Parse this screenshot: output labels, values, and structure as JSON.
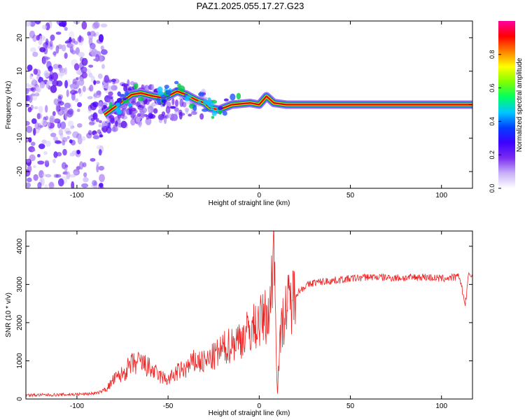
{
  "title": "PAZ1.2025.055.17.27.G23",
  "colors": {
    "snr_line": "#ee2222",
    "ridge": [
      "#e00000",
      "#ffcc00",
      "#00cc44",
      "#2255ff"
    ],
    "speckle": "#6a1fe0"
  },
  "chart_data": [
    {
      "type": "heatmap",
      "title": "PAZ1.2025.055.17.27.G23",
      "xlabel": "Height of straight line (km)",
      "ylabel": "Frequency (Hz)",
      "xlim": [
        -128,
        117
      ],
      "ylim": [
        -25,
        25
      ],
      "xticks": [
        -100,
        -50,
        0,
        50,
        100
      ],
      "yticks": [
        -20,
        -10,
        0,
        10,
        20
      ],
      "grid": false,
      "colorbar": {
        "label": "Normalized spectral amplitude",
        "range": [
          0,
          1
        ],
        "ticks": [
          "0.0",
          "0.2",
          "0.4",
          "0.6",
          "0.8"
        ],
        "colormap": [
          "#ffffff",
          "#c8b0f8",
          "#7a2cf0",
          "#3d00ff",
          "#0040ff",
          "#00c8ff",
          "#00ff60",
          "#80ff00",
          "#ffff00",
          "#ff8000",
          "#ff0000",
          "#ff00a0"
        ]
      },
      "ridge_frequency": [
        {
          "x": -85,
          "y": -3
        },
        {
          "x": -80,
          "y": -1
        },
        {
          "x": -75,
          "y": 1
        },
        {
          "x": -70,
          "y": 3
        },
        {
          "x": -65,
          "y": 3.5
        },
        {
          "x": -58,
          "y": 2.5
        },
        {
          "x": -52,
          "y": 2
        },
        {
          "x": -45,
          "y": 4
        },
        {
          "x": -40,
          "y": 3
        },
        {
          "x": -35,
          "y": 1.5
        },
        {
          "x": -30,
          "y": 0.5
        },
        {
          "x": -27,
          "y": -1
        },
        {
          "x": -22,
          "y": -1.5
        },
        {
          "x": -15,
          "y": 0
        },
        {
          "x": -5,
          "y": 0.5
        },
        {
          "x": 0,
          "y": 0
        },
        {
          "x": 4,
          "y": 2.5
        },
        {
          "x": 8,
          "y": 0.5
        },
        {
          "x": 15,
          "y": 0
        },
        {
          "x": 117,
          "y": 0
        }
      ],
      "speckle_extent": {
        "dense_below_x": -85,
        "sparse_to_x": -25
      }
    },
    {
      "type": "line",
      "xlabel": "Height of straight line (km)",
      "ylabel": "SNR (10 * v/v)",
      "xlim": [
        -128,
        117
      ],
      "ylim": [
        0,
        4400
      ],
      "xticks": [
        -100,
        -50,
        0,
        50,
        100
      ],
      "yticks": [
        0,
        1000,
        2000,
        3000,
        4000
      ],
      "grid": false,
      "series": [
        {
          "x": [
            -128,
            -110,
            -95,
            -88,
            -83,
            -80,
            -75,
            -70,
            -65,
            -60,
            -55,
            -50,
            -45,
            -40,
            -35,
            -30,
            -25,
            -20,
            -15,
            -10,
            -5,
            0,
            3,
            6,
            8,
            9,
            10,
            11,
            13,
            15,
            18,
            20,
            25,
            30,
            40,
            50,
            60,
            70,
            80,
            90,
            100,
            110,
            113,
            115,
            117
          ],
          "y": [
            100,
            110,
            130,
            160,
            300,
            500,
            650,
            900,
            950,
            800,
            600,
            500,
            700,
            800,
            1000,
            950,
            1100,
            1300,
            1450,
            1600,
            1800,
            2000,
            2150,
            2300,
            4300,
            2000,
            200,
            1300,
            2100,
            2400,
            2600,
            2750,
            2950,
            3050,
            3100,
            3150,
            3200,
            3180,
            3170,
            3200,
            3150,
            3200,
            2450,
            3300,
            3200
          ]
        }
      ]
    }
  ]
}
